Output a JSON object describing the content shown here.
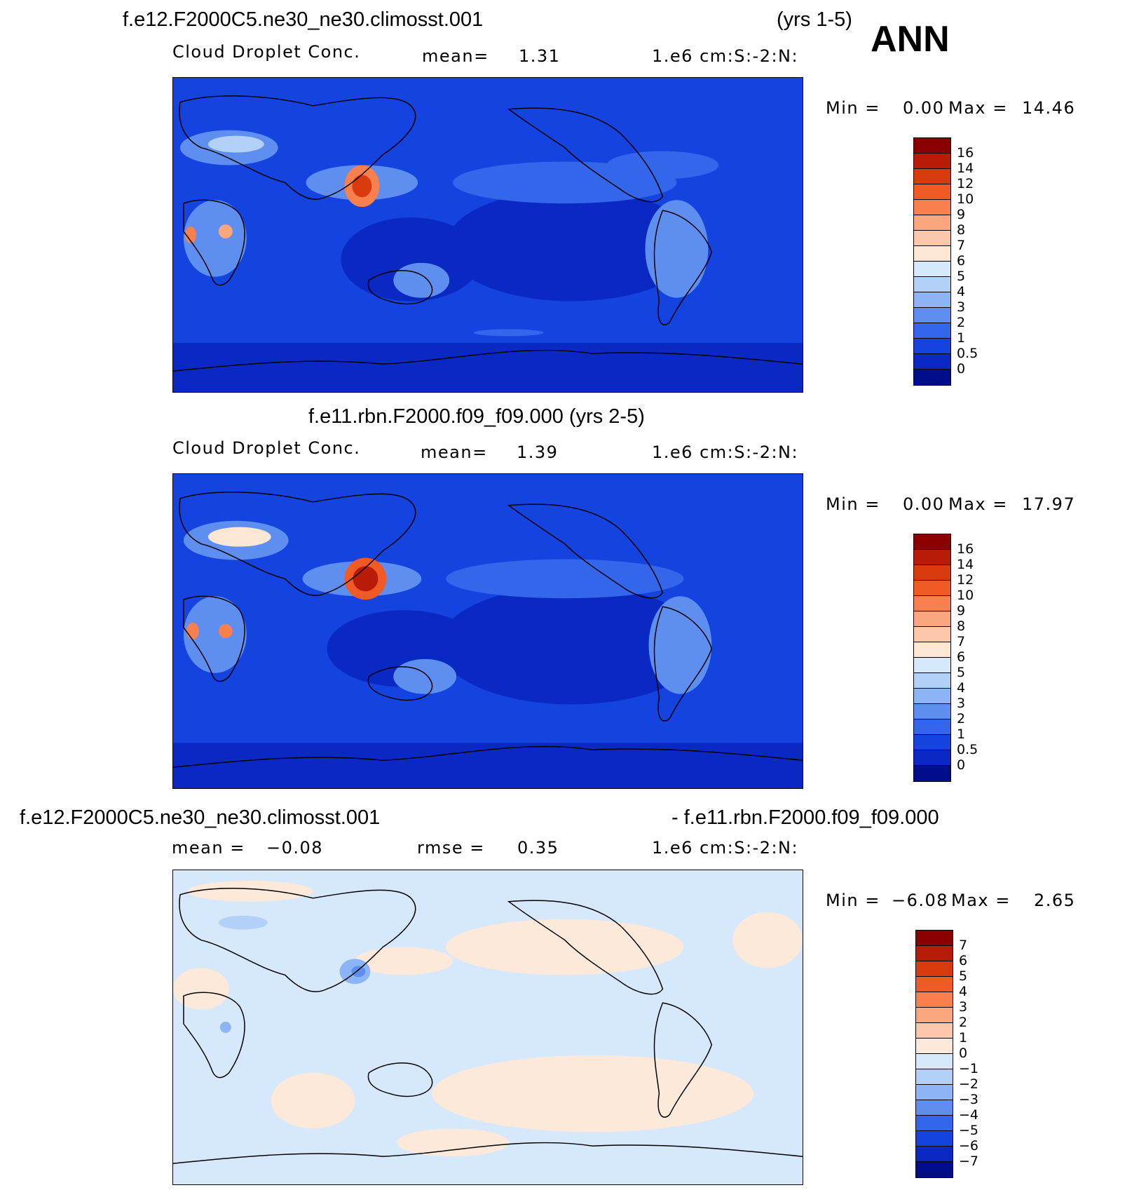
{
  "header": {
    "ann_label": "ANN"
  },
  "panels": [
    {
      "case_title": "f.e12.F2000C5.ne30_ne30.climosst.001",
      "years": "(yrs 1-5)",
      "variable": "Cloud Droplet Conc.",
      "mean_label": "mean=",
      "mean_value": "1.31",
      "units": "1.e6 cm:S:-2:N:",
      "min_label": "Min =",
      "min_value": "0.00",
      "max_label": "Max =",
      "max_value": "14.46",
      "colorbar": {
        "labels": [
          "16",
          "14",
          "12",
          "10",
          "9",
          "8",
          "7",
          "6",
          "5",
          "4",
          "3",
          "2",
          "1",
          "0.5",
          "0"
        ],
        "colors": [
          "#8b0000",
          "#b81c08",
          "#d93a0d",
          "#f05a25",
          "#f8804f",
          "#fba67d",
          "#fdc8aa",
          "#fde6d4",
          "#d6e8fb",
          "#b3d0f8",
          "#8db4f4",
          "#5e8ff0",
          "#3466eb",
          "#1543e0",
          "#0a28c2",
          "#000e8c"
        ]
      }
    },
    {
      "case_title": "f.e11.rbn.F2000.f09_f09.000 (yrs 2-5)",
      "variable": "Cloud Droplet Conc.",
      "mean_label": "mean=",
      "mean_value": "1.39",
      "units": "1.e6 cm:S:-2:N:",
      "min_label": "Min =",
      "min_value": "0.00",
      "max_label": "Max =",
      "max_value": "17.97",
      "colorbar": {
        "labels": [
          "16",
          "14",
          "12",
          "10",
          "9",
          "8",
          "7",
          "6",
          "5",
          "4",
          "3",
          "2",
          "1",
          "0.5",
          "0"
        ],
        "colors": [
          "#8b0000",
          "#b81c08",
          "#d93a0d",
          "#f05a25",
          "#f8804f",
          "#fba67d",
          "#fdc8aa",
          "#fde6d4",
          "#d6e8fb",
          "#b3d0f8",
          "#8db4f4",
          "#5e8ff0",
          "#3466eb",
          "#1543e0",
          "#0a28c2",
          "#000e8c"
        ]
      }
    },
    {
      "case_title_left": "f.e12.F2000C5.ne30_ne30.climosst.001",
      "case_title_right": "- f.e11.rbn.F2000.f09_f09.000",
      "mean_label": "mean =",
      "mean_value": "−0.08",
      "rmse_label": "rmse =",
      "rmse_value": "0.35",
      "units": "1.e6 cm:S:-2:N:",
      "min_label": "Min =",
      "min_value": "−6.08",
      "max_label": "Max =",
      "max_value": "2.65",
      "colorbar": {
        "labels": [
          "7",
          "6",
          "5",
          "4",
          "3",
          "2",
          "1",
          "0",
          "−1",
          "−2",
          "−3",
          "−4",
          "−5",
          "−6",
          "−7"
        ],
        "colors": [
          "#8b0000",
          "#b81c08",
          "#d93a0d",
          "#f05a25",
          "#f8804f",
          "#fba67d",
          "#fdc8aa",
          "#fde9d9",
          "#d6e8fb",
          "#b3d0f8",
          "#8db4f4",
          "#5e8ff0",
          "#3466eb",
          "#1543e0",
          "#0a28c2",
          "#000e8c"
        ]
      }
    }
  ]
}
